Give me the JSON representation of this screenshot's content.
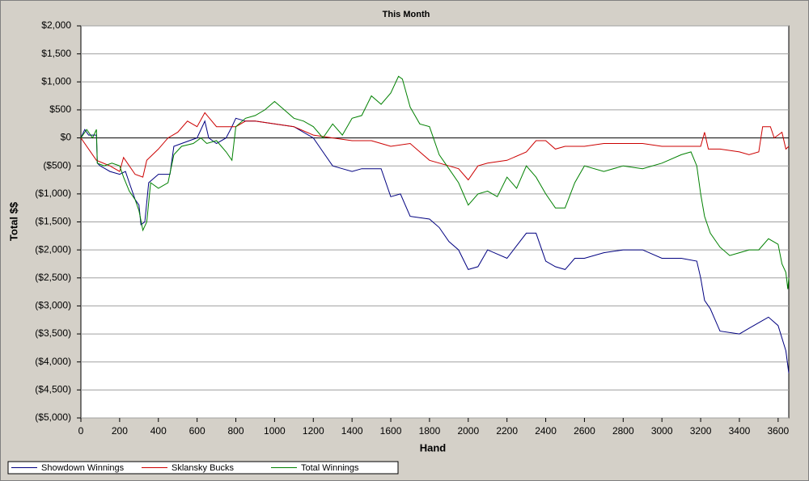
{
  "chart_data": {
    "type": "line",
    "title": "This Month",
    "xlabel": "Hand",
    "ylabel": "Total $$",
    "xlim": [
      0,
      3655
    ],
    "xticks": [
      0,
      200,
      400,
      600,
      800,
      1000,
      1200,
      1400,
      1600,
      1800,
      2000,
      2200,
      2400,
      2600,
      2800,
      3000,
      3200,
      3400,
      3600
    ],
    "ylim": [
      -5000,
      2000
    ],
    "yticks": [
      {
        "value": -5000,
        "label": "($5,000)"
      },
      {
        "value": -4500,
        "label": "($4,500)"
      },
      {
        "value": -4000,
        "label": "($4,000)"
      },
      {
        "value": -3500,
        "label": "($3,500)"
      },
      {
        "value": -3000,
        "label": "($3,000)"
      },
      {
        "value": -2500,
        "label": "($2,500)"
      },
      {
        "value": -2000,
        "label": "($2,000)"
      },
      {
        "value": -1500,
        "label": "($1,500)"
      },
      {
        "value": -1000,
        "label": "($1,000)"
      },
      {
        "value": -500,
        "label": "($500)"
      },
      {
        "value": 0,
        "label": "$0"
      },
      {
        "value": 500,
        "label": "$500"
      },
      {
        "value": 1000,
        "label": "$1,000"
      },
      {
        "value": 1500,
        "label": "$1,500"
      },
      {
        "value": 2000,
        "label": "$2,000"
      }
    ],
    "grid": true,
    "legend": "bottom",
    "series": [
      {
        "name": "Showdown Winnings",
        "color": "#000080",
        "x": [
          0,
          20,
          40,
          80,
          85,
          100,
          150,
          200,
          230,
          250,
          280,
          300,
          310,
          330,
          350,
          400,
          460,
          480,
          520,
          560,
          600,
          640,
          660,
          700,
          750,
          780,
          800,
          850,
          900,
          1000,
          1100,
          1200,
          1250,
          1300,
          1350,
          1400,
          1450,
          1550,
          1600,
          1650,
          1700,
          1800,
          1850,
          1900,
          1950,
          2000,
          2050,
          2100,
          2200,
          2300,
          2350,
          2400,
          2450,
          2500,
          2550,
          2600,
          2700,
          2800,
          2900,
          3000,
          3100,
          3180,
          3200,
          3220,
          3250,
          3300,
          3400,
          3450,
          3500,
          3550,
          3600,
          3640,
          3655
        ],
        "values": [
          0,
          150,
          50,
          50,
          -450,
          -500,
          -600,
          -650,
          -600,
          -800,
          -1100,
          -1200,
          -1550,
          -1500,
          -800,
          -650,
          -650,
          -150,
          -100,
          -50,
          0,
          300,
          0,
          -100,
          0,
          200,
          350,
          300,
          300,
          250,
          200,
          0,
          -250,
          -500,
          -550,
          -600,
          -550,
          -550,
          -1050,
          -1000,
          -1400,
          -1450,
          -1600,
          -1850,
          -2000,
          -2350,
          -2300,
          -2000,
          -2150,
          -1700,
          -1700,
          -2200,
          -2300,
          -2350,
          -2150,
          -2150,
          -2050,
          -2000,
          -2000,
          -2150,
          -2150,
          -2200,
          -2500,
          -2900,
          -3050,
          -3450,
          -3500,
          -3400,
          -3300,
          -3200,
          -3350,
          -3800,
          -4200
        ]
      },
      {
        "name": "Sklansky Bucks",
        "color": "#cc0000",
        "x": [
          0,
          80,
          150,
          200,
          220,
          280,
          320,
          340,
          400,
          450,
          500,
          550,
          600,
          640,
          700,
          800,
          850,
          900,
          1000,
          1100,
          1200,
          1300,
          1400,
          1500,
          1550,
          1600,
          1700,
          1750,
          1800,
          1900,
          1950,
          2000,
          2050,
          2100,
          2200,
          2300,
          2350,
          2400,
          2450,
          2500,
          2600,
          2700,
          2800,
          2900,
          3000,
          3100,
          3200,
          3220,
          3240,
          3300,
          3400,
          3450,
          3500,
          3520,
          3560,
          3580,
          3620,
          3640,
          3655
        ],
        "values": [
          0,
          -400,
          -500,
          -600,
          -350,
          -650,
          -700,
          -400,
          -200,
          0,
          100,
          300,
          200,
          450,
          200,
          200,
          300,
          300,
          250,
          200,
          50,
          0,
          -50,
          -50,
          -100,
          -150,
          -100,
          -250,
          -400,
          -500,
          -550,
          -750,
          -500,
          -450,
          -400,
          -250,
          -50,
          -50,
          -200,
          -150,
          -150,
          -100,
          -100,
          -100,
          -150,
          -150,
          -150,
          100,
          -200,
          -200,
          -250,
          -300,
          -250,
          200,
          200,
          0,
          100,
          -200,
          -150
        ]
      },
      {
        "name": "Total Winnings",
        "color": "#008000",
        "x": [
          0,
          30,
          60,
          80,
          85,
          120,
          160,
          200,
          220,
          250,
          280,
          300,
          320,
          340,
          360,
          400,
          450,
          480,
          520,
          580,
          620,
          650,
          700,
          750,
          780,
          800,
          850,
          900,
          950,
          1000,
          1050,
          1100,
          1150,
          1200,
          1250,
          1300,
          1350,
          1400,
          1450,
          1500,
          1550,
          1600,
          1640,
          1660,
          1700,
          1750,
          1800,
          1850,
          1900,
          1950,
          2000,
          2050,
          2100,
          2150,
          2200,
          2250,
          2300,
          2350,
          2400,
          2450,
          2500,
          2550,
          2600,
          2700,
          2800,
          2900,
          3000,
          3100,
          3150,
          3180,
          3200,
          3220,
          3250,
          3300,
          3350,
          3400,
          3450,
          3500,
          3550,
          3600,
          3620,
          3640,
          3650,
          3655
        ],
        "values": [
          0,
          150,
          0,
          150,
          -450,
          -500,
          -450,
          -500,
          -700,
          -950,
          -1100,
          -1300,
          -1650,
          -1500,
          -800,
          -900,
          -800,
          -300,
          -150,
          -100,
          0,
          -100,
          -50,
          -250,
          -400,
          200,
          350,
          400,
          500,
          650,
          500,
          350,
          300,
          200,
          0,
          250,
          50,
          350,
          400,
          750,
          600,
          800,
          1100,
          1050,
          550,
          250,
          200,
          -300,
          -550,
          -800,
          -1200,
          -1000,
          -950,
          -1050,
          -700,
          -900,
          -500,
          -700,
          -1000,
          -1250,
          -1250,
          -800,
          -500,
          -600,
          -500,
          -550,
          -450,
          -300,
          -250,
          -500,
          -1000,
          -1400,
          -1700,
          -1950,
          -2100,
          -2050,
          -2000,
          -2000,
          -1800,
          -1900,
          -2250,
          -2400,
          -2700,
          -2500
        ]
      }
    ]
  }
}
